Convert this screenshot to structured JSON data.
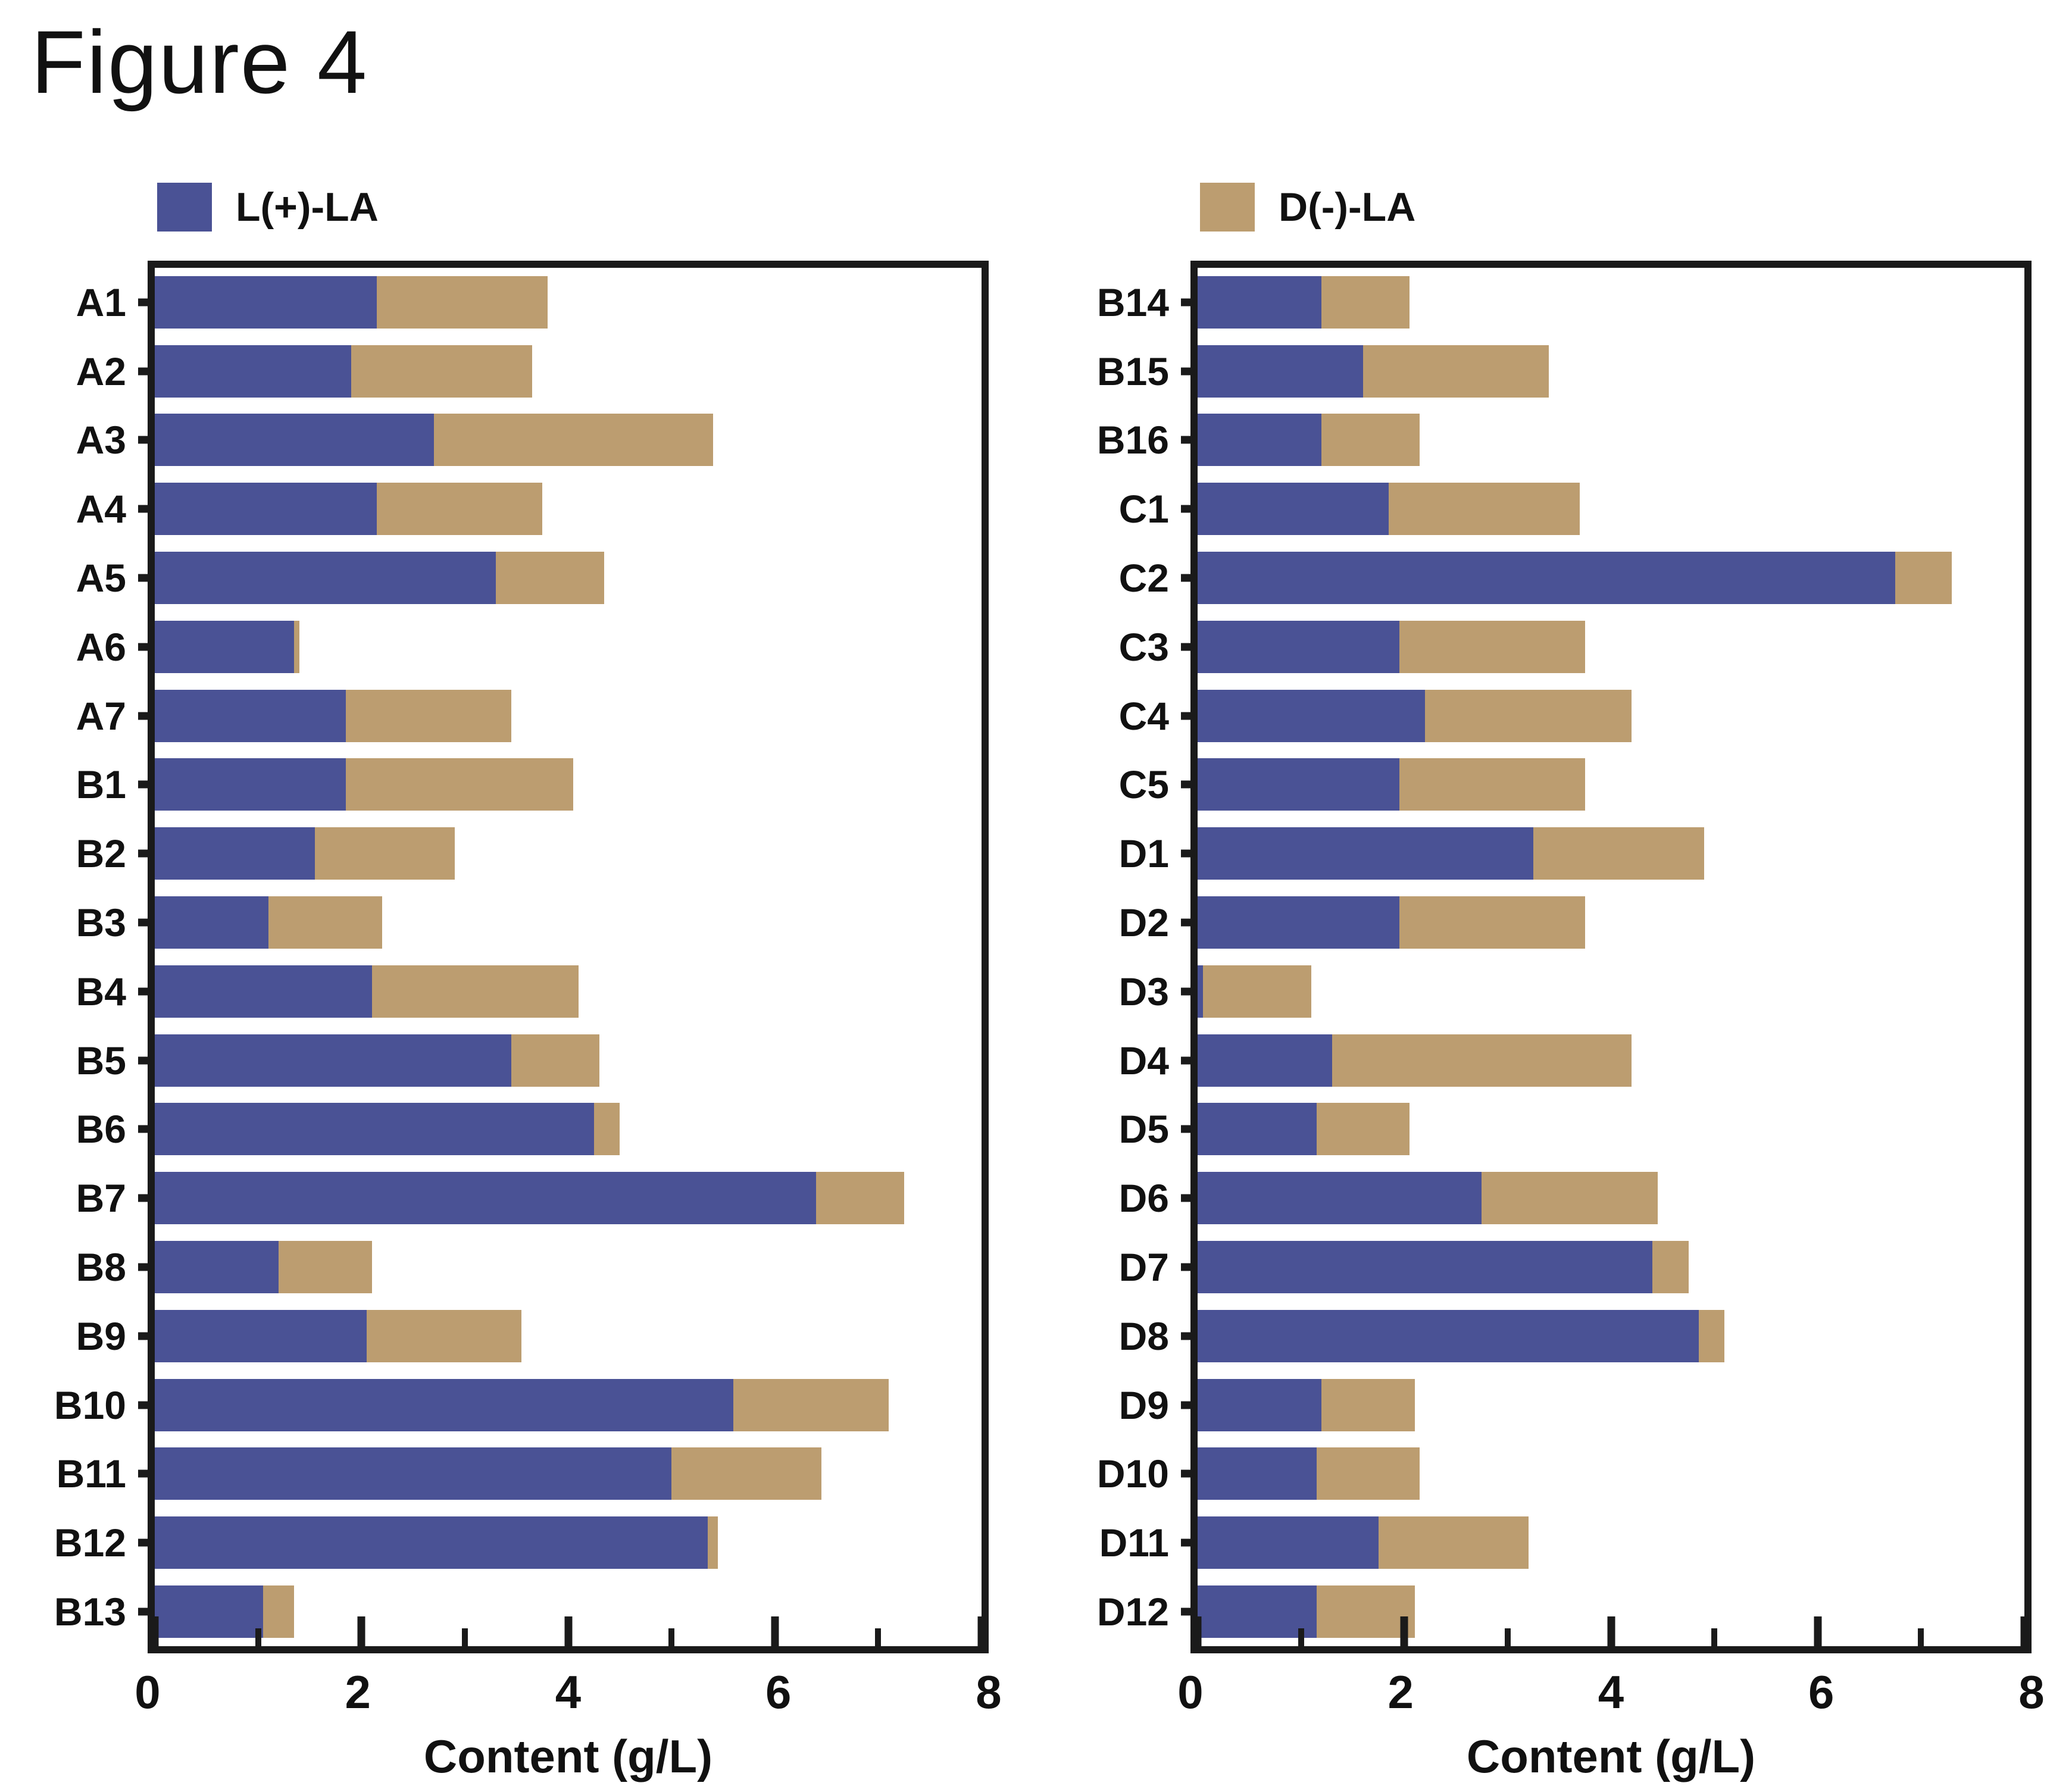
{
  "figure": {
    "title": "Figure 4"
  },
  "legend": {
    "left": {
      "label": "L(+)-LA",
      "color": "#4A5295"
    },
    "right": {
      "label": "D(-)-LA",
      "color": "#BC9D70"
    }
  },
  "axis": {
    "label": "Content (g/L)",
    "major_ticks": [
      0,
      2,
      4,
      6,
      8
    ],
    "minor_ticks": [
      1,
      3,
      5,
      7
    ],
    "max": 8
  },
  "colors": {
    "l_la": "#4A5295",
    "d_la": "#BC9D70",
    "axis": "#1a1a1a"
  },
  "chart_data": [
    {
      "type": "bar",
      "orientation": "horizontal",
      "stacked": true,
      "panel": "left",
      "xlabel": "Content (g/L)",
      "xlim": [
        0,
        8
      ],
      "grid": false,
      "legend_position": "top-left",
      "categories": [
        "A1",
        "A2",
        "A3",
        "A4",
        "A5",
        "A6",
        "A7",
        "B1",
        "B2",
        "B3",
        "B4",
        "B5",
        "B6",
        "B7",
        "B8",
        "B9",
        "B10",
        "B11",
        "B12",
        "B13"
      ],
      "series": [
        {
          "name": "L(+)-LA",
          "color": "#4A5295",
          "values": [
            2.15,
            1.9,
            2.7,
            2.15,
            3.3,
            1.35,
            1.85,
            1.85,
            1.55,
            1.1,
            2.1,
            3.45,
            4.25,
            6.4,
            1.2,
            2.05,
            5.6,
            5.0,
            5.35,
            1.05
          ]
        },
        {
          "name": "D(-)-LA",
          "color": "#BC9D70",
          "values": [
            1.65,
            1.75,
            2.7,
            1.6,
            1.05,
            0.05,
            1.6,
            2.2,
            1.35,
            1.1,
            2.0,
            0.85,
            0.25,
            0.85,
            0.9,
            1.5,
            1.5,
            1.45,
            0.1,
            0.3
          ]
        }
      ]
    },
    {
      "type": "bar",
      "orientation": "horizontal",
      "stacked": true,
      "panel": "right",
      "xlabel": "Content (g/L)",
      "xlim": [
        0,
        8
      ],
      "grid": false,
      "legend_position": "top-left",
      "categories": [
        "B14",
        "B15",
        "B16",
        "C1",
        "C2",
        "C3",
        "C4",
        "C5",
        "D1",
        "D2",
        "D3",
        "D4",
        "D5",
        "D6",
        "D7",
        "D8",
        "D9",
        "D10",
        "D11",
        "D12"
      ],
      "series": [
        {
          "name": "L(+)-LA",
          "color": "#4A5295",
          "values": [
            1.2,
            1.6,
            1.2,
            1.85,
            6.75,
            1.95,
            2.2,
            1.95,
            3.25,
            1.95,
            0.05,
            1.3,
            1.15,
            2.75,
            4.4,
            4.85,
            1.2,
            1.15,
            1.75,
            1.15
          ]
        },
        {
          "name": "D(-)-LA",
          "color": "#BC9D70",
          "values": [
            0.85,
            1.8,
            0.95,
            1.85,
            0.55,
            1.8,
            2.0,
            1.8,
            1.65,
            1.8,
            1.05,
            2.9,
            0.9,
            1.7,
            0.35,
            0.25,
            0.9,
            1.0,
            1.45,
            0.95
          ]
        }
      ]
    }
  ]
}
